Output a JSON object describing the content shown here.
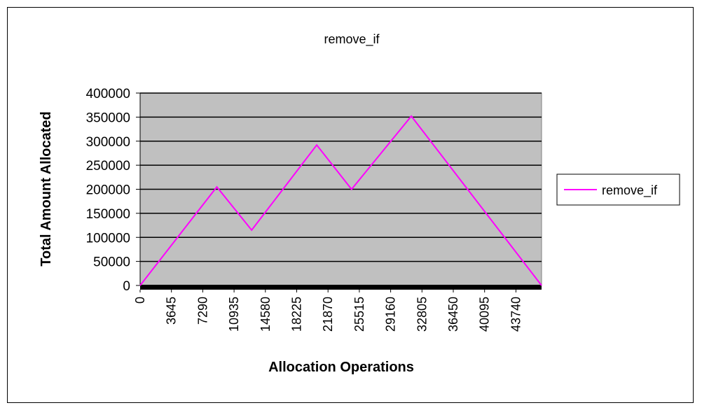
{
  "chart_data": {
    "type": "line",
    "title": "remove_if",
    "xlabel": "Allocation Operations",
    "ylabel": "Total Amount Allocated",
    "x_tick_labels": [
      "0",
      "3645",
      "7290",
      "10935",
      "14580",
      "18225",
      "21870",
      "25515",
      "29160",
      "32805",
      "36450",
      "40095",
      "43740"
    ],
    "xlim": [
      0,
      45000
    ],
    "ylim": [
      0,
      400000
    ],
    "y_ticks": [
      0,
      50000,
      100000,
      150000,
      200000,
      250000,
      300000,
      350000,
      400000
    ],
    "grid": true,
    "legend_position": "right",
    "series": [
      {
        "name": "remove_if",
        "color": "#ff00ff",
        "x": [
          0,
          8600,
          12500,
          19800,
          23700,
          30400,
          45000
        ],
        "y": [
          0,
          205000,
          115000,
          292000,
          200000,
          352000,
          0
        ]
      }
    ]
  },
  "colors": {
    "plot_background": "#c0c0c0",
    "gridline": "#000000",
    "line": "#ff00ff"
  }
}
